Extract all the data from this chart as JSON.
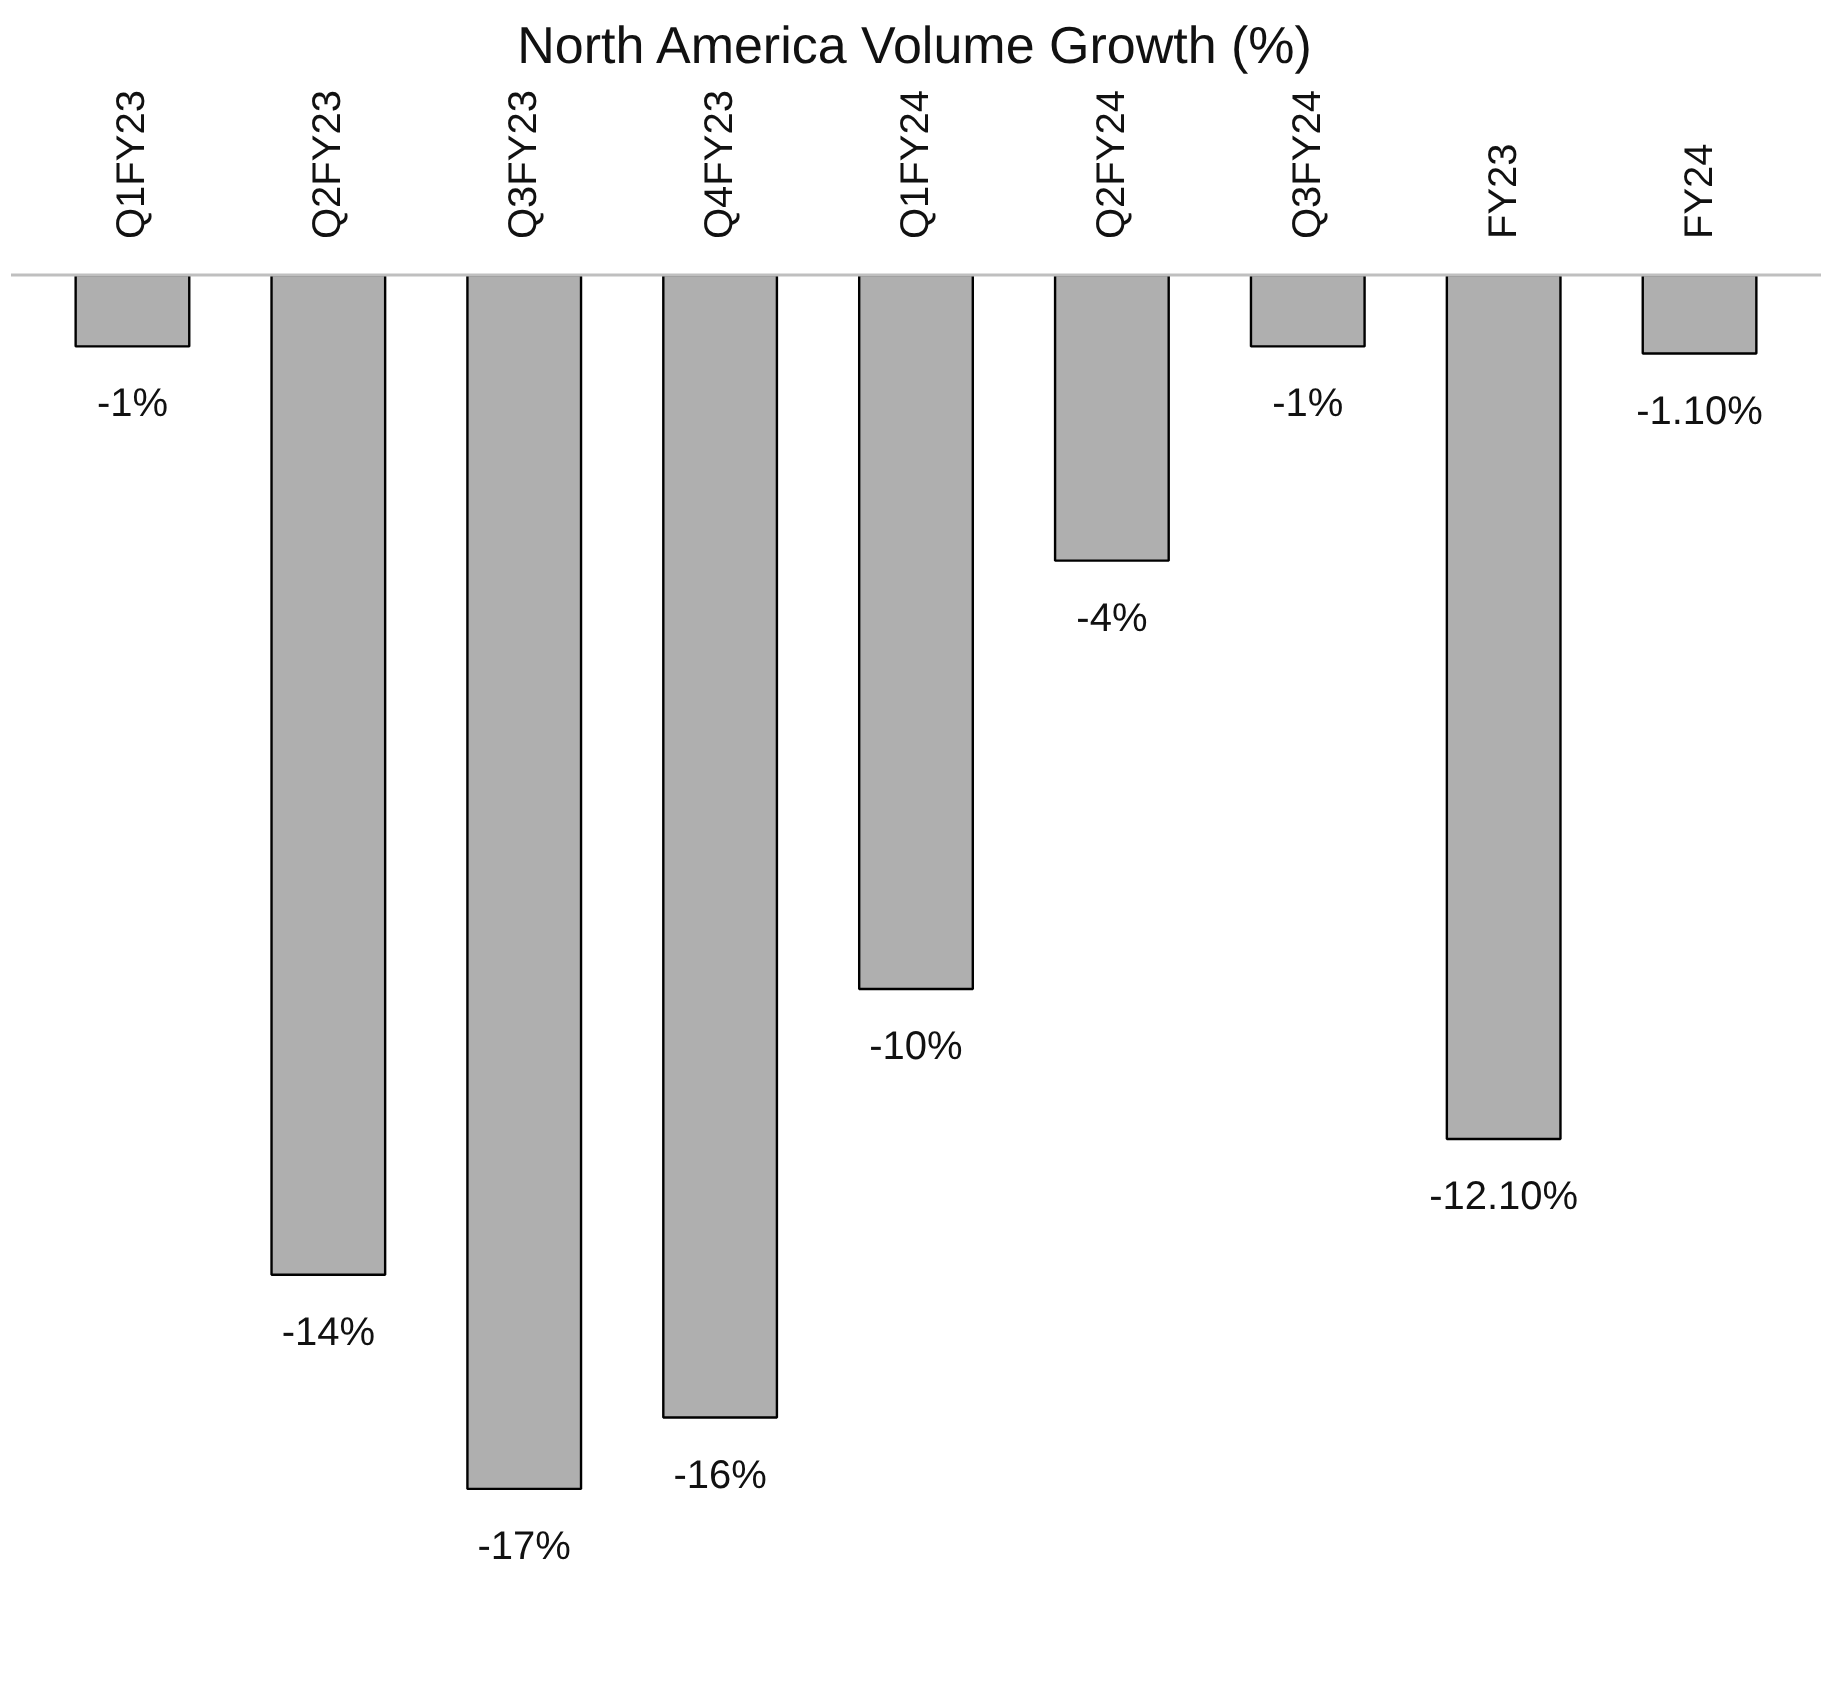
{
  "chart_data": {
    "type": "bar",
    "title": "North America Volume Growth (%)",
    "categories": [
      "Q1FY23",
      "Q2FY23",
      "Q3FY23",
      "Q4FY23",
      "Q1FY24",
      "Q2FY24",
      "Q3FY24",
      "FY23",
      "FY24"
    ],
    "values": [
      -1,
      -14,
      -17,
      -16,
      -10,
      -4,
      -1,
      -12.1,
      -1.1
    ],
    "value_labels": [
      "-1%",
      "-14%",
      "-17%",
      "-16%",
      "-10%",
      "-4%",
      "-1%",
      "-12.10%",
      "-1.10%"
    ],
    "color": "#afafaf",
    "grid": false
  }
}
